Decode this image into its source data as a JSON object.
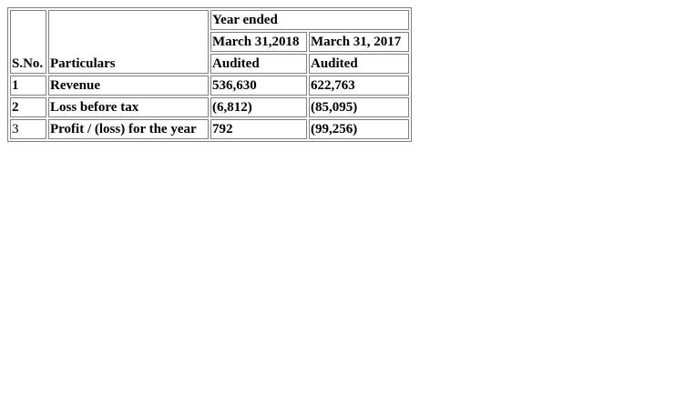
{
  "table": {
    "header": {
      "sno": "S.No.",
      "particulars": "Particulars",
      "group": "Year ended",
      "periods": [
        "March 31,2018",
        "March 31, 2017"
      ],
      "status": [
        "Audited",
        "Audited"
      ]
    },
    "rows": [
      {
        "sno": "1",
        "particulars": "Revenue",
        "values": [
          "536,630",
          "622,763"
        ]
      },
      {
        "sno": "2",
        "particulars": "Loss before tax",
        "values": [
          "(6,812)",
          "(85,095)"
        ]
      },
      {
        "sno": "3",
        "particulars": "Profit / (loss) for the year",
        "values": [
          "792",
          "(99,256)"
        ]
      }
    ]
  }
}
